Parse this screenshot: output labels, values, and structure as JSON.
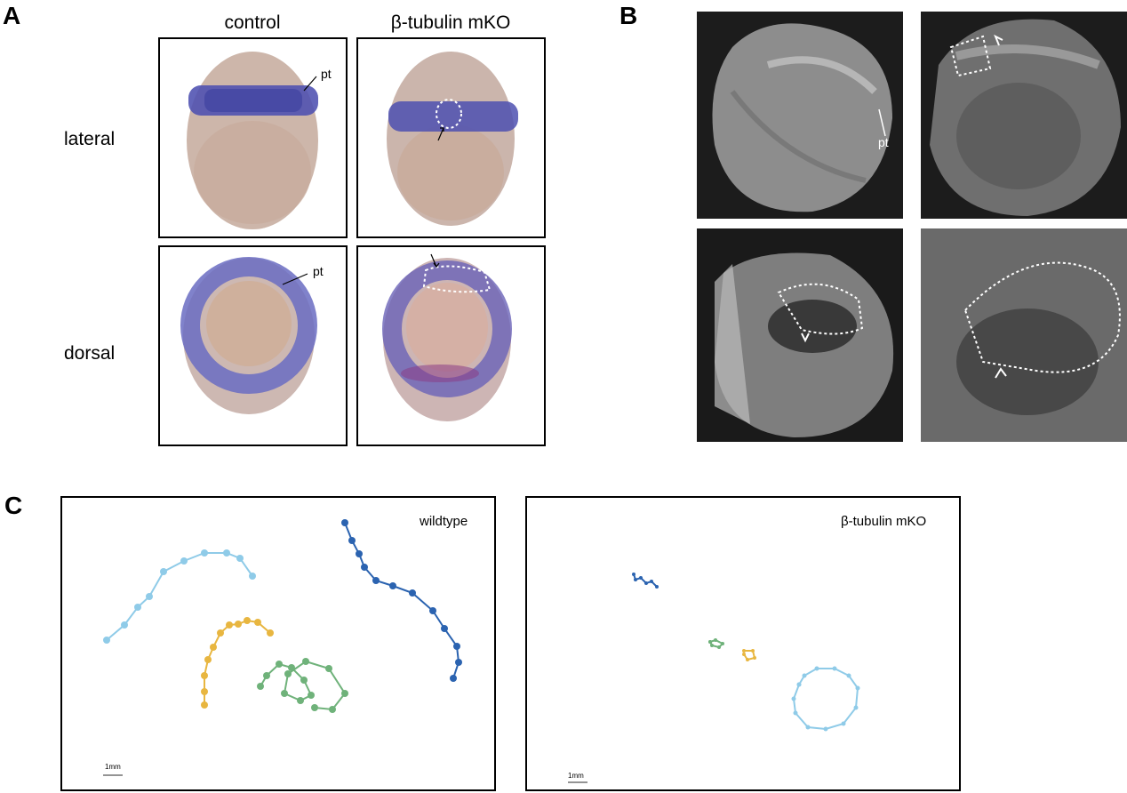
{
  "panels": {
    "a": {
      "letter": "A"
    },
    "b": {
      "letter": "B"
    },
    "c": {
      "letter": "C"
    }
  },
  "figure_a": {
    "columns": [
      "control",
      "β-tubulin mKO"
    ],
    "rows": [
      "lateral",
      "dorsal"
    ],
    "annotations": {
      "pt": "pt"
    }
  },
  "figure_b": {
    "annotations": {
      "pt": "pt"
    }
  },
  "figure_c": {
    "plots": [
      {
        "title": "wildtype",
        "scale_label": "1mm"
      },
      {
        "title": "β-tubulin mKO",
        "scale_label": "1mm"
      }
    ],
    "colors": {
      "light_blue": "#8fcbe8",
      "dark_blue": "#2b63b0",
      "yellow": "#e8b640",
      "green": "#6fb27a"
    }
  },
  "colors": {
    "stain_blue": "#5a5fb8",
    "embryo_tan": "#cdb5a6",
    "sem_dark": "#1a1a1a"
  }
}
